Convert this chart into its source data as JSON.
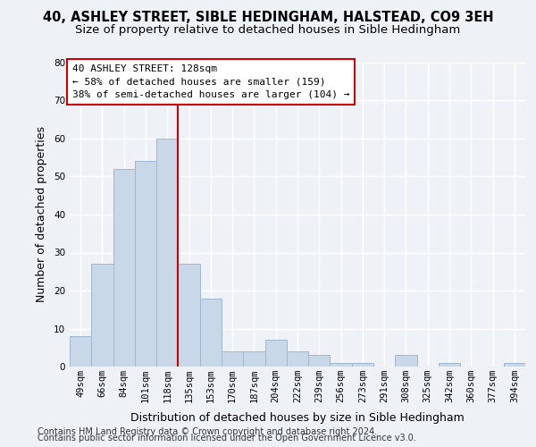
{
  "title_line1": "40, ASHLEY STREET, SIBLE HEDINGHAM, HALSTEAD, CO9 3EH",
  "title_line2": "Size of property relative to detached houses in Sible Hedingham",
  "xlabel": "Distribution of detached houses by size in Sible Hedingham",
  "ylabel": "Number of detached properties",
  "categories": [
    "49sqm",
    "66sqm",
    "84sqm",
    "101sqm",
    "118sqm",
    "135sqm",
    "153sqm",
    "170sqm",
    "187sqm",
    "204sqm",
    "222sqm",
    "239sqm",
    "256sqm",
    "273sqm",
    "291sqm",
    "308sqm",
    "325sqm",
    "342sqm",
    "360sqm",
    "377sqm",
    "394sqm"
  ],
  "values": [
    8,
    27,
    52,
    54,
    60,
    27,
    18,
    4,
    4,
    7,
    4,
    3,
    1,
    1,
    0,
    3,
    0,
    1,
    0,
    0,
    1
  ],
  "bar_color": "#c8d8e8",
  "bar_edge_color": "#a0b8d0",
  "vline_x_index": 4.5,
  "vline_color": "#cc0000",
  "annotation_text": "40 ASHLEY STREET: 128sqm\n← 58% of detached houses are smaller (159)\n38% of semi-detached houses are larger (104) →",
  "annotation_box_color": "#ffffff",
  "annotation_box_edge_color": "#cc0000",
  "ylim": [
    0,
    80
  ],
  "yticks": [
    0,
    10,
    20,
    30,
    40,
    50,
    60,
    70,
    80
  ],
  "footer_line1": "Contains HM Land Registry data © Crown copyright and database right 2024.",
  "footer_line2": "Contains public sector information licensed under the Open Government Licence v3.0.",
  "bg_color": "#eef2f7",
  "plot_bg_color": "#eef2f7",
  "grid_color": "#ffffff",
  "title_fontsize": 10.5,
  "subtitle_fontsize": 9.5,
  "tick_fontsize": 7.5,
  "label_fontsize": 9,
  "footer_fontsize": 7,
  "annotation_fontsize": 8
}
